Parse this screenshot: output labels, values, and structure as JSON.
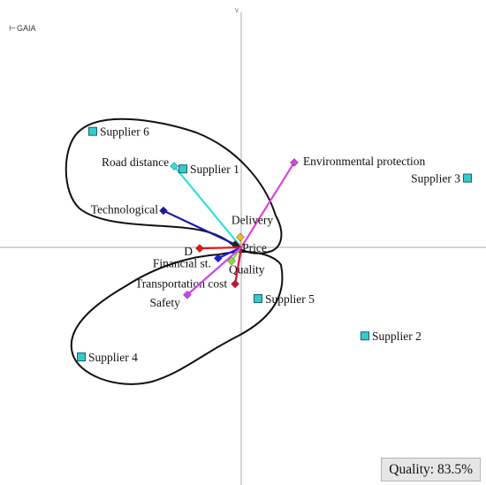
{
  "app": {
    "title": "GAIA",
    "vertical_axis_tag": "v"
  },
  "quality_text": "Quality: 83.5%",
  "chart_data": {
    "type": "scatter",
    "title": "GAIA",
    "xlim": [
      -1.0,
      1.0
    ],
    "ylim": [
      -1.0,
      1.0
    ],
    "axes": "centered",
    "grid": false,
    "alternatives": [
      {
        "name": "Supplier 1",
        "x": -0.24,
        "y": 0.317
      },
      {
        "name": "Supplier 2",
        "x": 0.509,
        "y": -0.358
      },
      {
        "name": "Supplier 3",
        "x": 0.931,
        "y": 0.28
      },
      {
        "name": "Supplier 4",
        "x": -0.658,
        "y": -0.443
      },
      {
        "name": "Supplier 5",
        "x": 0.069,
        "y": -0.207
      },
      {
        "name": "Supplier 6",
        "x": -0.611,
        "y": 0.469
      }
    ],
    "criteria": [
      {
        "name": "Environmental protection",
        "x": 0.218,
        "y": 0.343,
        "color": "#dd44dd"
      },
      {
        "name": "Road distance",
        "x": -0.276,
        "y": 0.328,
        "color": "#33dddd"
      },
      {
        "name": "Technological",
        "x": -0.32,
        "y": 0.148,
        "color": "#1a1aa6"
      },
      {
        "name": "Delivery",
        "x": -0.004,
        "y": 0.041,
        "color": "#f2b233"
      },
      {
        "name": "Price",
        "x": -0.025,
        "y": 0.011,
        "color": "#222222"
      },
      {
        "name": "D",
        "x": -0.171,
        "y": -0.004,
        "color": "#ee1111"
      },
      {
        "name": "Financial st.",
        "x": -0.095,
        "y": -0.044,
        "color": "#1a1aee"
      },
      {
        "name": "Quality",
        "x": -0.04,
        "y": -0.055,
        "color": "#88dd33"
      },
      {
        "name": "Transportation cost",
        "x": -0.025,
        "y": -0.148,
        "color": "#cc1133"
      },
      {
        "name": "Safety",
        "x": -0.222,
        "y": -0.192,
        "color": "#cc44ee"
      }
    ]
  }
}
